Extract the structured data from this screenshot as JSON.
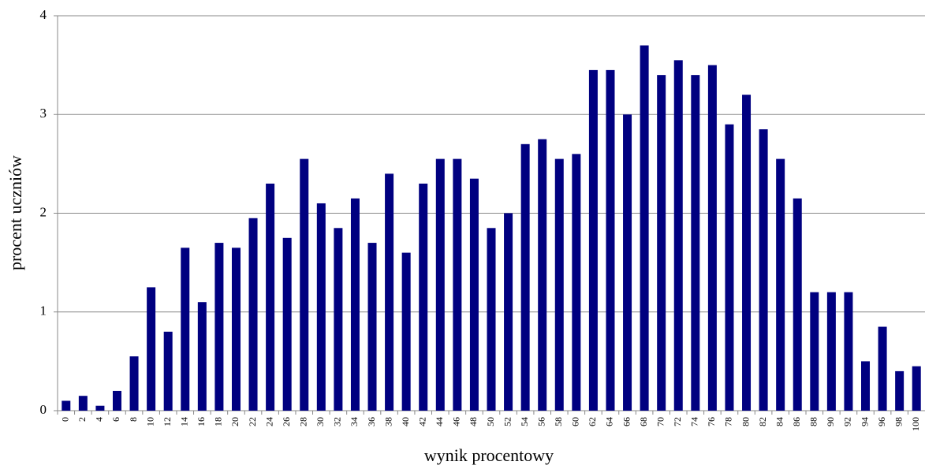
{
  "chart_data": {
    "type": "bar",
    "y_label": "procent uczniów",
    "x_label": "wynik procentowy",
    "categories": [
      0,
      2,
      4,
      6,
      8,
      10,
      12,
      14,
      16,
      18,
      20,
      22,
      24,
      26,
      28,
      30,
      32,
      34,
      36,
      38,
      40,
      42,
      44,
      46,
      48,
      50,
      52,
      54,
      56,
      58,
      60,
      62,
      64,
      66,
      68,
      70,
      72,
      74,
      76,
      78,
      80,
      82,
      84,
      86,
      88,
      90,
      92,
      94,
      96,
      98,
      100
    ],
    "values": [
      0.1,
      0.15,
      0.05,
      0.2,
      0.55,
      1.25,
      0.8,
      1.65,
      1.1,
      1.7,
      1.65,
      1.95,
      2.3,
      1.75,
      2.55,
      2.1,
      1.85,
      2.15,
      1.7,
      2.4,
      1.6,
      2.3,
      2.55,
      2.55,
      2.35,
      1.85,
      2.0,
      2.7,
      2.75,
      2.55,
      2.6,
      3.45,
      3.45,
      3.0,
      3.7,
      3.4,
      3.55,
      3.4,
      3.5,
      2.9,
      3.2,
      2.85,
      2.55,
      2.15,
      1.2,
      1.2,
      1.2,
      0.5,
      0.85,
      0.4,
      0.45
    ],
    "color": "#000080",
    "ylim": [
      0,
      4
    ],
    "yticks": [
      0,
      1,
      2,
      3,
      4
    ],
    "grid": true
  }
}
